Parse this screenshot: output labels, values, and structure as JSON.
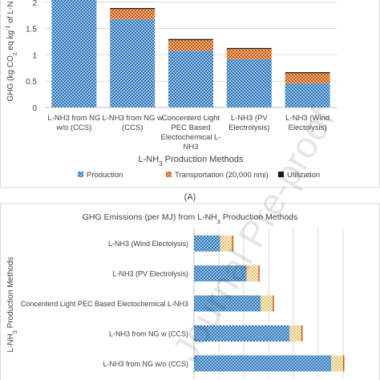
{
  "watermark": "Journal Pre-proof",
  "chart_data": [
    {
      "type": "bar",
      "stacked": true,
      "panel_label": "(A)",
      "title": "",
      "ylabel_parts": [
        "GHG (kg CO",
        "2",
        " eq kg",
        "-1",
        " of L-N"
      ],
      "xlabel_parts": [
        "L-NH",
        "3",
        " Production Methods"
      ],
      "ylim": [
        0,
        2.5
      ],
      "yticks": [
        0,
        0.5,
        1,
        1.5,
        2
      ],
      "ytick_labels": [
        "0",
        "0.5",
        "1",
        "1.5",
        "2"
      ],
      "grid": true,
      "legend_position": "bottom",
      "categories": [
        [
          "L-NH3 from NG",
          "w/o (CCS)"
        ],
        [
          "L-NH3 from NG w",
          "(CCS)"
        ],
        [
          "Concenterd Light",
          "PEC Based",
          "Electochemical L-",
          "NH3"
        ],
        [
          "L-NH3 (PV",
          "Electrolysis)"
        ],
        [
          "L-NH3 (Wind",
          "Electolysis)"
        ]
      ],
      "series": [
        {
          "name": "Production",
          "values": [
            2.23,
            1.68,
            1.08,
            0.92,
            0.46
          ],
          "color": "#2e75b6"
        },
        {
          "name": "Transportation (20,000 nmi)",
          "values": [
            0.22,
            0.19,
            0.2,
            0.19,
            0.19
          ],
          "color": "#ed7d31"
        },
        {
          "name": "Utilization",
          "values": [
            0.02,
            0.02,
            0.02,
            0.02,
            0.02
          ],
          "color": "#1a1a1a"
        }
      ]
    },
    {
      "type": "bar",
      "orientation": "horizontal",
      "stacked": true,
      "title_parts": [
        "GHG Emissions (per MJ) from L-NH",
        "3",
        " Production Methods"
      ],
      "ylabel_parts": [
        "L-NH",
        "3",
        " Production Methods"
      ],
      "grid": true,
      "categories": [
        "L-NH3 (Wind Electolysis)",
        "L-NH3 (PV Electrolysis)",
        "Concenterd Light PEC Based Electochemical L-NH3",
        "L-NH3 from NG w (CCS)",
        "L-NH3 from NG w/o (CCS)"
      ],
      "xlim": [
        0,
        125
      ],
      "series": [
        {
          "name": "Production",
          "values": [
            22,
            44,
            56,
            80,
            115
          ],
          "color": "#2e75b6"
        },
        {
          "name": "Transportation",
          "values": [
            10,
            10,
            10,
            10,
            10
          ],
          "color": "#f2d38a"
        },
        {
          "name": "Utilization",
          "values": [
            1,
            1,
            1,
            1,
            1
          ],
          "color": "#c55a11"
        }
      ]
    }
  ]
}
